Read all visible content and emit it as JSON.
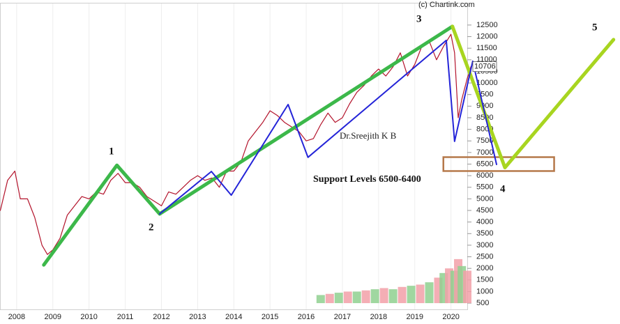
{
  "chart_data": {
    "type": "line",
    "xlim": [
      2007.54,
      2024.67
    ],
    "xticks": [
      2008,
      2009,
      2010,
      2011,
      2012,
      2013,
      2014,
      2015,
      2016,
      2017,
      2018,
      2019,
      2020
    ],
    "ylim": [
      -400,
      13580
    ],
    "yticks": [
      500,
      1000,
      1500,
      2000,
      2500,
      3000,
      3500,
      4000,
      4500,
      5000,
      5500,
      6000,
      6500,
      7000,
      7500,
      8000,
      8500,
      9000,
      9500,
      10000,
      10500,
      11000,
      11500,
      12000,
      12500
    ],
    "grid": true,
    "last_price": 10706,
    "series": [
      {
        "color": "#b3132b",
        "width": 1.2,
        "x": [
          2007.55,
          2007.75,
          2007.95,
          2008.1,
          2008.3,
          2008.5,
          2008.7,
          2008.85,
          2009.0,
          2009.2,
          2009.4,
          2009.6,
          2009.8,
          2010.0,
          2010.2,
          2010.4,
          2010.6,
          2010.8,
          2011.0,
          2011.2,
          2011.4,
          2011.6,
          2011.8,
          2012.0,
          2012.2,
          2012.4,
          2012.6,
          2012.8,
          2013.0,
          2013.2,
          2013.4,
          2013.6,
          2013.8,
          2014.0,
          2014.2,
          2014.4,
          2014.6,
          2014.8,
          2015.0,
          2015.2,
          2015.4,
          2015.6,
          2015.8,
          2016.0,
          2016.2,
          2016.4,
          2016.6,
          2016.8,
          2017.0,
          2017.2,
          2017.4,
          2017.6,
          2017.8,
          2018.0,
          2018.2,
          2018.4,
          2018.6,
          2018.8,
          2019.0,
          2019.2,
          2019.4,
          2019.6,
          2019.8,
          2020.0,
          2020.1,
          2020.2,
          2020.3,
          2020.45,
          2020.55
        ],
        "values": [
          4500,
          5800,
          6200,
          5000,
          5000,
          4200,
          3000,
          2600,
          2800,
          3300,
          4300,
          4700,
          5100,
          5000,
          5300,
          5200,
          5800,
          6100,
          5700,
          5700,
          5500,
          5100,
          4900,
          4700,
          5300,
          5200,
          5500,
          5800,
          6000,
          5800,
          5900,
          5500,
          6200,
          6200,
          6600,
          7500,
          7900,
          8300,
          8800,
          8600,
          8300,
          8100,
          7900,
          7500,
          7600,
          8200,
          8700,
          8300,
          8500,
          9100,
          9600,
          9900,
          10300,
          10600,
          10300,
          10700,
          11300,
          10300,
          10800,
          11600,
          11800,
          11000,
          11600,
          12100,
          11300,
          8500,
          9300,
          10200,
          10706
        ]
      },
      {
        "color": "#3cb84a",
        "width": 5,
        "x": [
          2008.75,
          2010.77,
          2011.95,
          2020.04
        ],
        "values": [
          2150,
          6450,
          4350,
          12440
        ]
      },
      {
        "color": "#a8d520",
        "width": 5,
        "x": [
          2020.04,
          2021.49,
          2024.49
        ],
        "values": [
          12440,
          6350,
          11870
        ]
      },
      {
        "color": "#2424d8",
        "width": 2,
        "x": [
          2011.95,
          2013.38,
          2013.93,
          2015.5,
          2016.05,
          2019.87,
          2020.1,
          2020.6,
          2021.26
        ],
        "values": [
          4350,
          6180,
          5160,
          9070,
          6790,
          11840,
          7480,
          10940,
          6485
        ]
      }
    ],
    "volume": {
      "x": [
        2016.4,
        2016.65,
        2016.9,
        2017.15,
        2017.4,
        2017.65,
        2017.9,
        2018.15,
        2018.4,
        2018.65,
        2018.9,
        2019.15,
        2019.4,
        2019.65,
        2019.8,
        2019.95,
        2020.1,
        2020.2,
        2020.3,
        2020.45
      ],
      "values": [
        850,
        900,
        950,
        1000,
        1000,
        1050,
        1100,
        1150,
        1100,
        1200,
        1250,
        1300,
        1400,
        1600,
        1800,
        2000,
        1900,
        2400,
        2100,
        1900
      ],
      "colors": [
        "#8fd08f",
        "#f2a0a8",
        "#8fd08f",
        "#f2a0a8",
        "#8fd08f",
        "#f2a0a8",
        "#8fd08f",
        "#f2a0a8",
        "#8fd08f",
        "#f2a0a8",
        "#8fd08f",
        "#f2a0a8",
        "#8fd08f",
        "#f2a0a8",
        "#8fd08f",
        "#f2a0a8",
        "#8fd08f",
        "#f2a0a8",
        "#8fd08f",
        "#f2a0a8"
      ]
    },
    "support_box": {
      "x": [
        2019.79,
        2022.85
      ],
      "values": [
        6200,
        6800
      ],
      "color": "#b5784a"
    },
    "annotations": [
      "(c) Chartink.com",
      "1",
      "2",
      "3",
      "4",
      "5",
      "Dr.Sreejith K B",
      "Support Levels 6500-6400"
    ]
  }
}
